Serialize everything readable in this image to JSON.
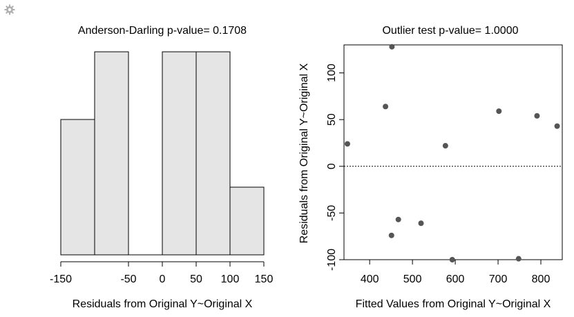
{
  "toolbar": {
    "settings_icon": "gear-icon"
  },
  "chart_data": [
    {
      "type": "bar",
      "subtype": "histogram",
      "title": "Anderson-Darling p-value= 0.1708",
      "xlabel": "Residuals from Original Y~Original X",
      "ylabel": "",
      "bins": [
        {
          "from": -150,
          "to": -100,
          "count": 2
        },
        {
          "from": -100,
          "to": -50,
          "count": 3
        },
        {
          "from": -50,
          "to": 0,
          "count": 0
        },
        {
          "from": 0,
          "to": 50,
          "count": 3
        },
        {
          "from": 50,
          "to": 100,
          "count": 3
        },
        {
          "from": 100,
          "to": 150,
          "count": 1
        }
      ],
      "xlim": [
        -150,
        150
      ],
      "ylim": [
        0,
        3
      ],
      "xticks": [
        -150,
        -50,
        0,
        50,
        100,
        150
      ],
      "xtick_labels": [
        "-150",
        "-50",
        "0",
        "50",
        "100",
        "150"
      ],
      "bar_fill": "#e5e5e5",
      "bar_stroke": "#000000",
      "grid": false
    },
    {
      "type": "scatter",
      "title": "Outlier test p-value= 1.0000",
      "xlabel": "Fitted Values from Original Y~Original X",
      "ylabel": "Residuals from Original Y~Original X",
      "xlim": [
        340,
        850
      ],
      "ylim": [
        -100,
        130
      ],
      "xticks": [
        400,
        500,
        600,
        700,
        800
      ],
      "xtick_labels": [
        "400",
        "500",
        "600",
        "700",
        "800"
      ],
      "yticks": [
        -100,
        -50,
        0,
        50,
        100
      ],
      "ytick_labels": [
        "-100",
        "-50",
        "0",
        "50",
        "100"
      ],
      "reference_line": {
        "y": 0,
        "style": "dotted"
      },
      "point_color": "#555555",
      "points": [
        {
          "x": 348,
          "y": 24
        },
        {
          "x": 437,
          "y": 64
        },
        {
          "x": 452,
          "y": 128
        },
        {
          "x": 451,
          "y": -74
        },
        {
          "x": 467,
          "y": -57
        },
        {
          "x": 520,
          "y": -61
        },
        {
          "x": 577,
          "y": 22
        },
        {
          "x": 593,
          "y": -100
        },
        {
          "x": 702,
          "y": 59
        },
        {
          "x": 748,
          "y": -99
        },
        {
          "x": 791,
          "y": 54
        },
        {
          "x": 838,
          "y": 43
        }
      ],
      "grid": false
    }
  ]
}
